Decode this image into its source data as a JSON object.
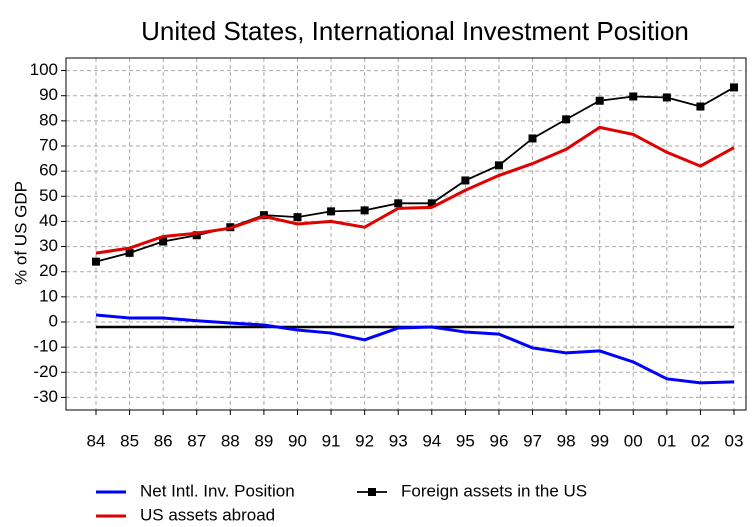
{
  "chart_data": {
    "type": "line",
    "title": "United States, International Investment Position",
    "y_label": "% of US GDP",
    "categories": [
      "84",
      "85",
      "86",
      "87",
      "88",
      "89",
      "90",
      "91",
      "92",
      "93",
      "94",
      "95",
      "96",
      "97",
      "98",
      "99",
      "00",
      "01",
      "02",
      "03"
    ],
    "series": [
      {
        "name": "Net Intl. Inv. Position",
        "color": "#0000ff",
        "marker": "none",
        "values": [
          2.8,
          1.6,
          1.6,
          0.5,
          -0.4,
          -1.2,
          -3.2,
          -4.4,
          -7.1,
          -2.4,
          -2,
          -4,
          -4.8,
          -10.3,
          -12.3,
          -11.5,
          -15.9,
          -22.6,
          -24.2,
          -23.8
        ]
      },
      {
        "name": "Foreign assets in the US",
        "color": "#000000",
        "marker": "square",
        "values": [
          24,
          27.5,
          32,
          34.5,
          37.7,
          42.5,
          41.7,
          44,
          44.4,
          47.2,
          47.2,
          56.3,
          62.3,
          73,
          80.6,
          88,
          89.7,
          89.3,
          85.7,
          93.3
        ]
      },
      {
        "name": "US assets abroad",
        "color": "#e00000",
        "marker": "none",
        "values": [
          27.4,
          29.4,
          34,
          35.3,
          37.3,
          42,
          39,
          40,
          37.7,
          45.2,
          45.6,
          52.4,
          58.3,
          63,
          68.7,
          77.4,
          74.6,
          67.5,
          62,
          69.4
        ]
      }
    ],
    "reference_line": -2,
    "ylim": [
      -35,
      105
    ],
    "yticks": [
      -30,
      -20,
      -10,
      0,
      10,
      20,
      30,
      40,
      50,
      60,
      70,
      80,
      90,
      100
    ],
    "grid": true,
    "legend": "bottom"
  }
}
